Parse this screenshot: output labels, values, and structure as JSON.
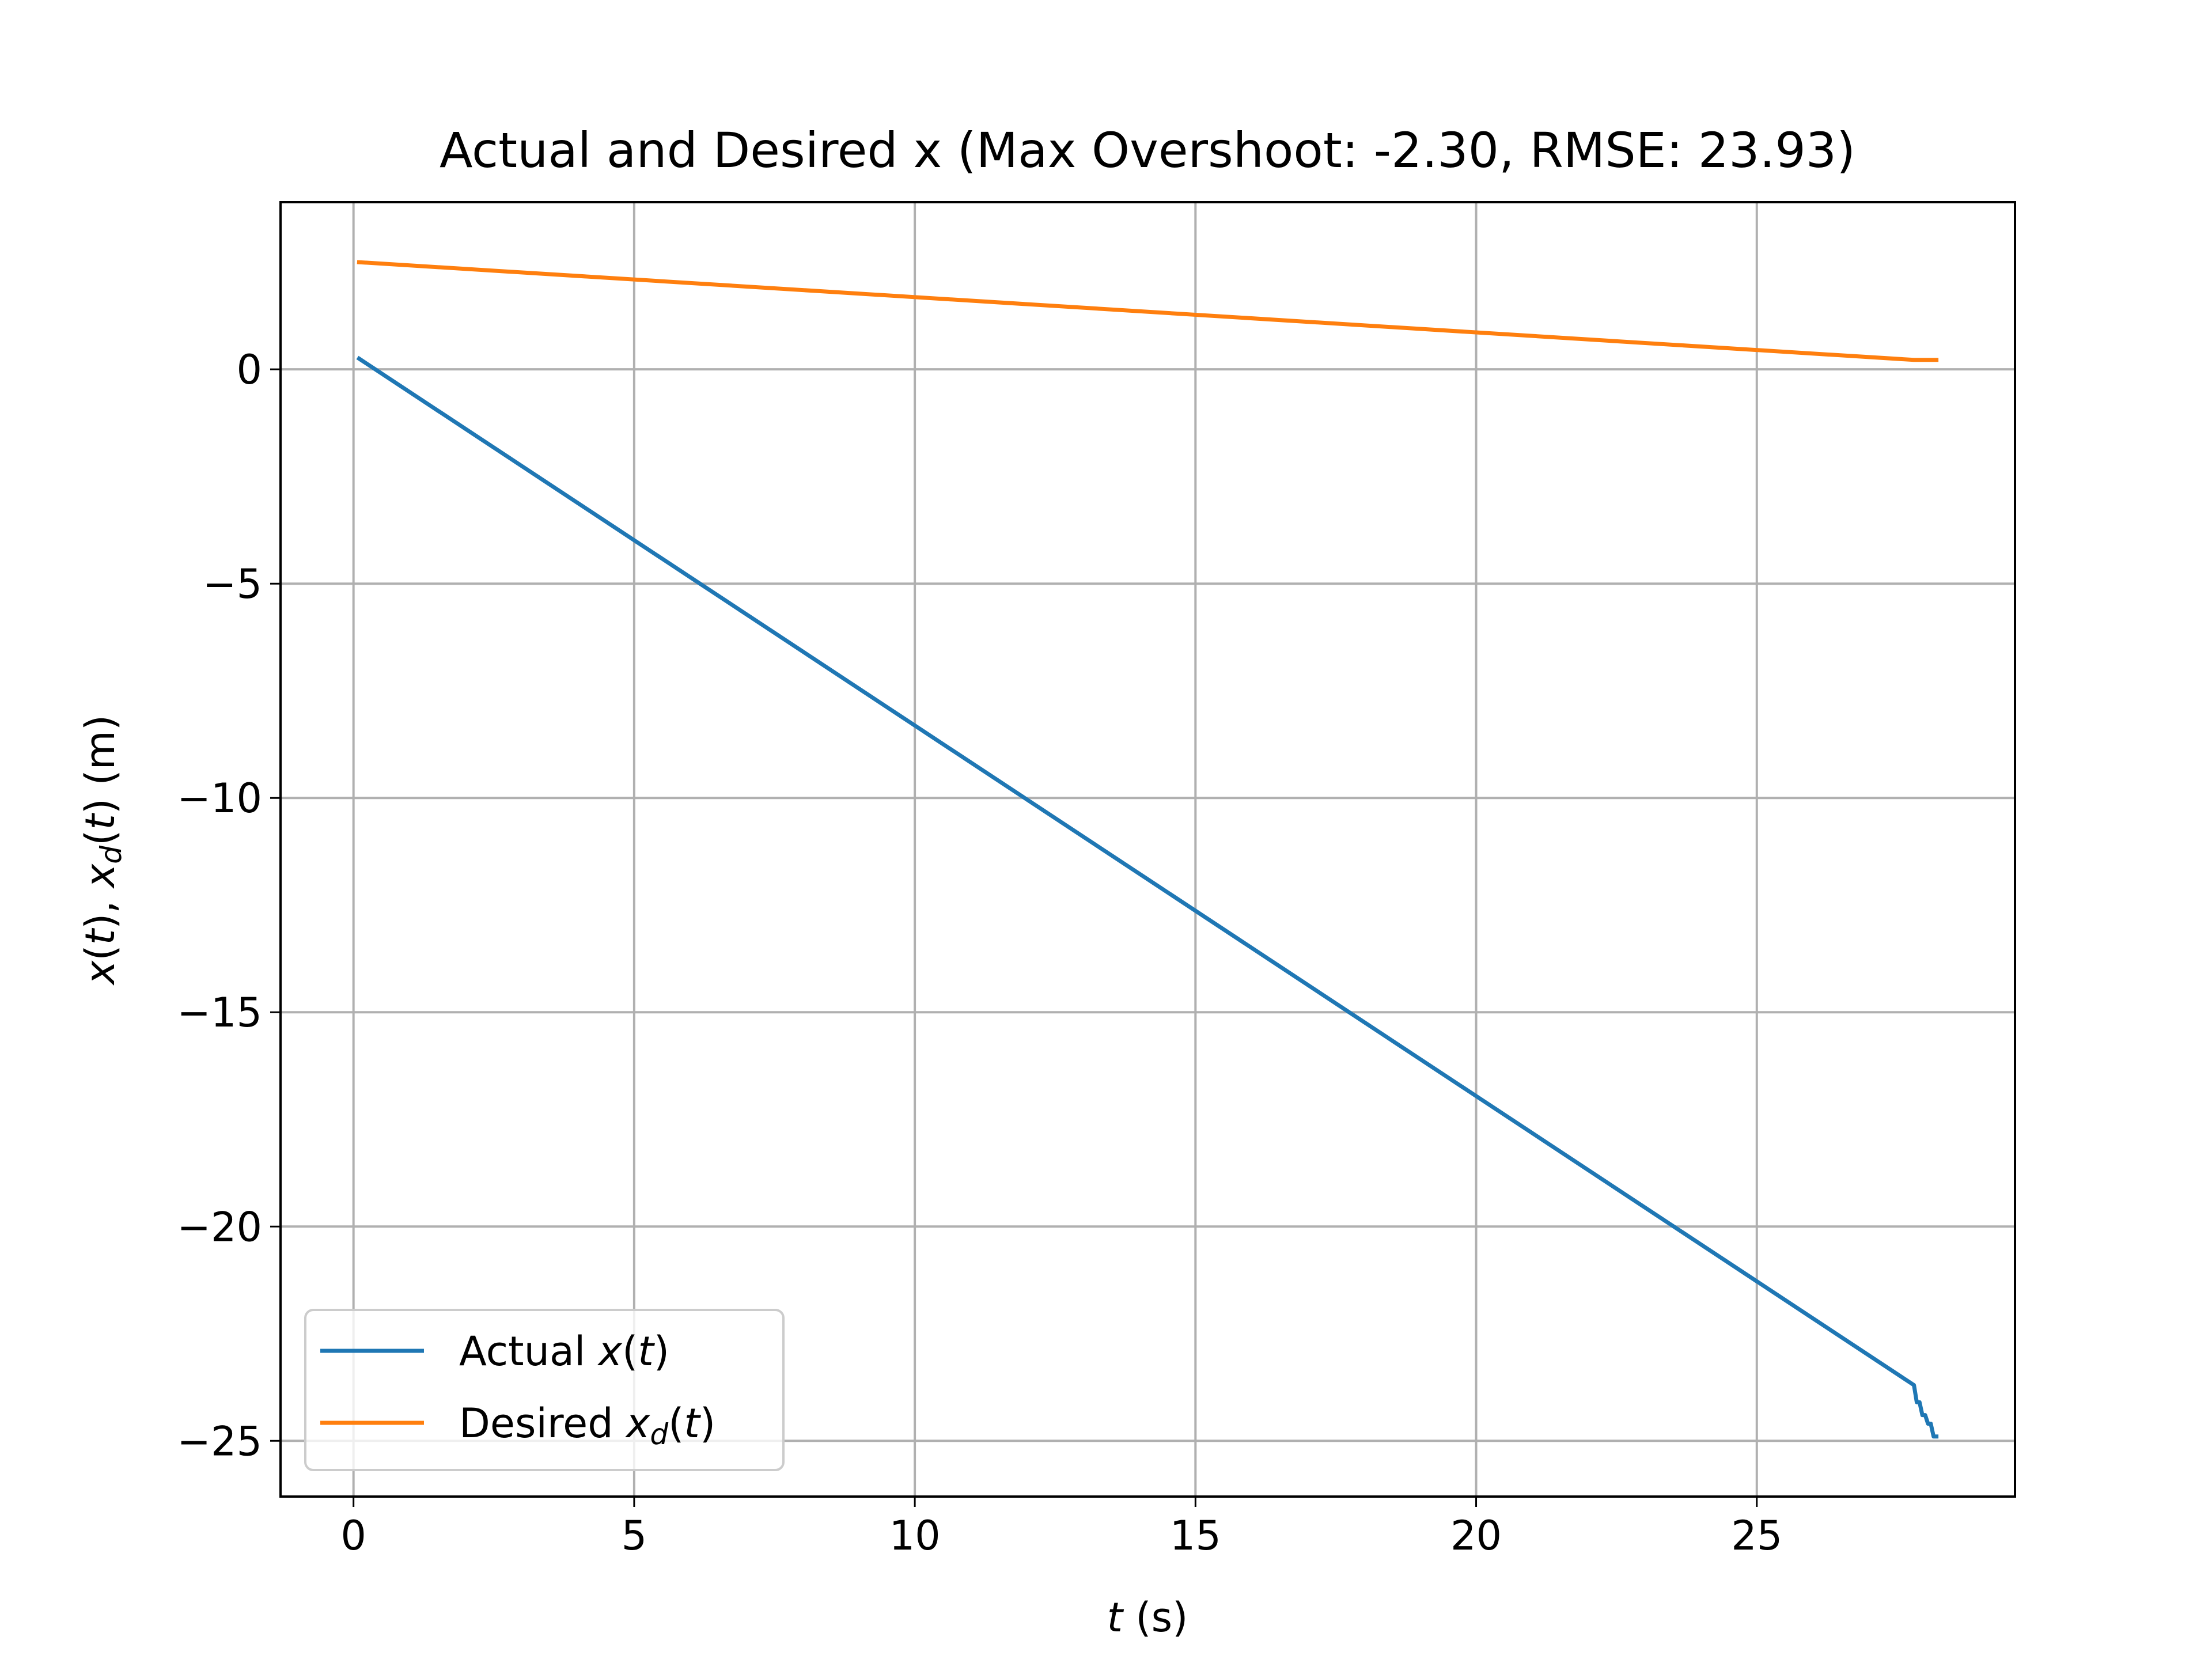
{
  "chart_data": {
    "type": "line",
    "title": "Actual and Desired x (Max Overshoot: -2.30, RMSE: 23.93)",
    "xlabel": {
      "var": "t",
      "unit": " (s)"
    },
    "ylabel": {
      "a": "x",
      "b": "(",
      "c": "t",
      "d": "), ",
      "e": "x",
      "f": "d",
      "g": "(",
      "h": "t",
      "i": ") (m)"
    },
    "xlim": [
      -1.3,
      29.6
    ],
    "ylim": [
      -26.3,
      3.9
    ],
    "xticks": [
      0,
      5,
      10,
      15,
      20,
      25
    ],
    "xtick_labels": [
      "0",
      "5",
      "10",
      "15",
      "20",
      "25"
    ],
    "yticks": [
      0,
      -5,
      -10,
      -15,
      -20,
      -25
    ],
    "ytick_labels": [
      "0",
      "−5",
      "−10",
      "−15",
      "−20",
      "−25"
    ],
    "grid": true,
    "legend_position": "lower-left",
    "series": [
      {
        "name": "Actual x(t)",
        "legend": {
          "pre": "Actual ",
          "v": "x",
          "o": "(",
          "t": "t",
          "c": ")"
        },
        "color": "#1f77b4",
        "x": [
          0.1,
          27.8,
          27.85,
          27.9,
          27.95,
          28.0,
          28.05,
          28.1,
          28.15,
          28.2
        ],
        "y": [
          0.25,
          -23.7,
          -24.1,
          -24.1,
          -24.4,
          -24.4,
          -24.6,
          -24.6,
          -24.9,
          -24.9
        ]
      },
      {
        "name": "Desired x_d(t)",
        "legend": {
          "pre": "Desired ",
          "v": "x",
          "sub": "d",
          "o": "(",
          "t": "t",
          "c": ")"
        },
        "color": "#ff7f0e",
        "x": [
          0.1,
          27.8,
          28.2
        ],
        "y": [
          2.5,
          0.22,
          0.22
        ]
      }
    ]
  }
}
